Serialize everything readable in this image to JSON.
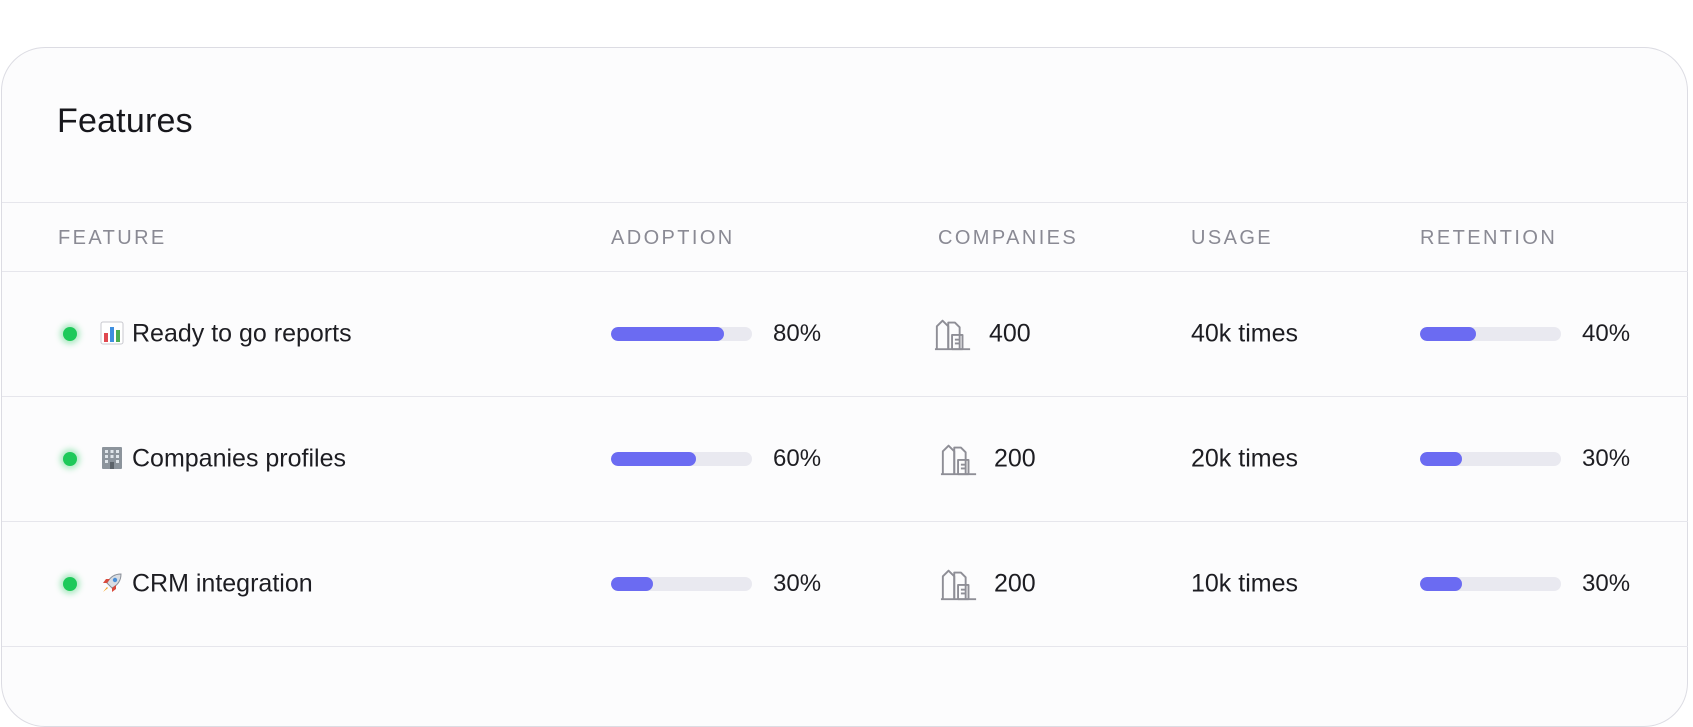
{
  "card": {
    "title": "Features"
  },
  "columns": {
    "feature": "FEATURE",
    "adoption": "ADOPTION",
    "companies": "COMPANIES",
    "usage": "USAGE",
    "retention": "RETENTION"
  },
  "colors": {
    "accent": "#6b6bf2",
    "status_active": "#1ec95a",
    "track": "#e9e9f0"
  },
  "rows": [
    {
      "status": "active",
      "icon": "bar-chart-emoji-icon",
      "name": "Ready to go reports",
      "adoption": 0.8,
      "adoption_label": "80%",
      "companies_icon": "buildings-icon",
      "companies": "400",
      "usage": "40k times",
      "retention": 0.4,
      "retention_label": "40%"
    },
    {
      "status": "active",
      "icon": "office-building-emoji-icon",
      "name": "Companies profiles",
      "adoption": 0.6,
      "adoption_label": "60%",
      "companies_icon": "buildings-icon",
      "companies": "200",
      "usage": "20k times",
      "retention": 0.3,
      "retention_label": "30%"
    },
    {
      "status": "active",
      "icon": "rocket-emoji-icon",
      "name": "CRM integration",
      "adoption": 0.3,
      "adoption_label": "30%",
      "companies_icon": "buildings-icon",
      "companies": "200",
      "usage": "10k times",
      "retention": 0.3,
      "retention_label": "30%"
    }
  ]
}
